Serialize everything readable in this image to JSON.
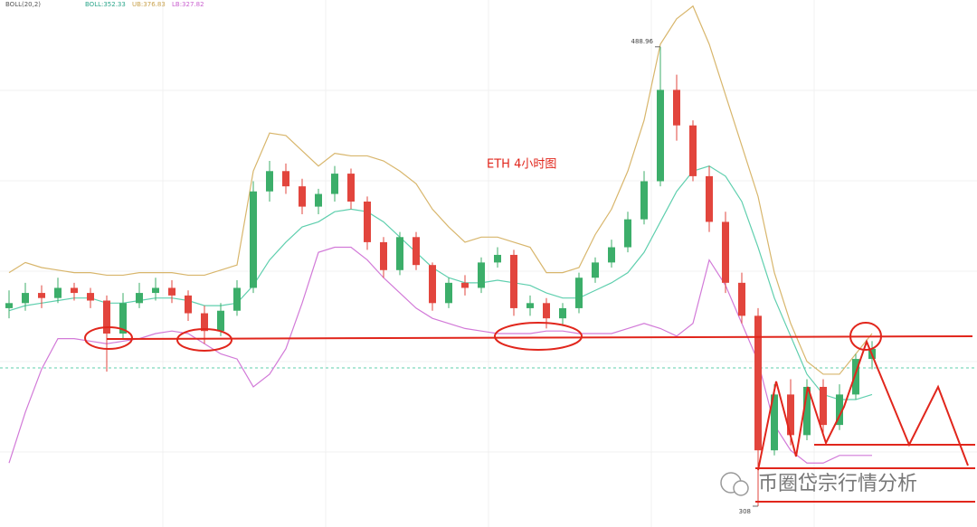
{
  "chart_data": {
    "type": "candlestick",
    "indicator": "BOLL(20,2)",
    "boll_label": "BOLL:352.33",
    "ub_label": "UB:376.83",
    "lb_label": "LB:327.82",
    "title": "ETH  4小时图",
    "watermark": "币圈岱宗行情分析",
    "annotations": [
      {
        "value": 488.96,
        "label": "488.96"
      },
      {
        "value": 308,
        "label": "308"
      }
    ],
    "ylim": [
      299.8,
      507.4
    ],
    "up_color": "#3cae6a",
    "down_color": "#e2453d",
    "open": [
      386,
      388,
      392,
      390,
      394,
      392,
      389,
      376,
      388,
      392,
      394,
      391,
      384,
      377,
      385,
      394,
      432,
      440,
      434,
      426,
      431,
      439,
      428,
      412,
      401,
      414,
      403,
      388,
      396,
      394,
      404,
      407,
      386,
      388,
      382,
      386,
      398,
      404,
      410,
      421,
      436,
      472,
      458,
      438,
      420,
      396,
      383,
      330,
      352,
      336,
      355,
      340,
      352,
      366
    ],
    "close": [
      388,
      392,
      390,
      394,
      392,
      389,
      376,
      388,
      392,
      394,
      391,
      384,
      377,
      385,
      394,
      432,
      440,
      434,
      426,
      431,
      439,
      428,
      412,
      401,
      414,
      403,
      388,
      396,
      394,
      404,
      407,
      386,
      388,
      382,
      386,
      398,
      404,
      410,
      421,
      436,
      472,
      458,
      438,
      420,
      396,
      383,
      330,
      352,
      336,
      355,
      340,
      352,
      366,
      370
    ],
    "high": [
      393,
      396,
      395,
      398,
      396,
      394,
      391,
      392,
      396,
      398,
      397,
      393,
      387,
      388,
      397,
      436,
      444,
      443,
      437,
      433,
      442,
      441,
      430,
      414,
      416,
      416,
      404,
      398,
      399,
      406,
      410,
      409,
      391,
      390,
      388,
      400,
      406,
      413,
      424,
      440,
      488.96,
      478,
      460,
      442,
      424,
      400,
      386,
      356,
      358,
      358,
      358,
      356,
      368,
      373
    ],
    "low": [
      382,
      385,
      386,
      388,
      389,
      386,
      361,
      374,
      386,
      389,
      388,
      381,
      372,
      375,
      383,
      392,
      428,
      431,
      423,
      423,
      428,
      425,
      409,
      398,
      399,
      401,
      385,
      386,
      391,
      392,
      402,
      383,
      383,
      378,
      379,
      384,
      396,
      402,
      408,
      419,
      434,
      452,
      436,
      416,
      392,
      380,
      308,
      328,
      332,
      334,
      336,
      338,
      350,
      362
    ],
    "upper": [
      400,
      404,
      402,
      401,
      400,
      400,
      399,
      399,
      400,
      400,
      400,
      399,
      399,
      401,
      403,
      440,
      455,
      454,
      448,
      442,
      447,
      446,
      446,
      444,
      440,
      435,
      425,
      418,
      412,
      414,
      414,
      412,
      410,
      400,
      400,
      402,
      415,
      425,
      440,
      460,
      490,
      500,
      505,
      490,
      470,
      450,
      430,
      400,
      380,
      365,
      360,
      360,
      368,
      376
    ],
    "middle": [
      385,
      387,
      388,
      389,
      390,
      390,
      388,
      388,
      389,
      390,
      390,
      389,
      387,
      387,
      388,
      395,
      405,
      412,
      418,
      420,
      424,
      425,
      424,
      420,
      414,
      408,
      402,
      398,
      396,
      396,
      397,
      396,
      395,
      392,
      390,
      390,
      393,
      396,
      400,
      408,
      420,
      432,
      440,
      442,
      438,
      428,
      410,
      390,
      375,
      360,
      352,
      350,
      350,
      352
    ],
    "lower": [
      325,
      345,
      362,
      374,
      374,
      373,
      372,
      373,
      374,
      376,
      377,
      376,
      372,
      368,
      366,
      355,
      360,
      370,
      388,
      408,
      410,
      410,
      405,
      398,
      392,
      386,
      382,
      380,
      378,
      377,
      376,
      376,
      376,
      377,
      377,
      376,
      376,
      376,
      378,
      380,
      378,
      375,
      380,
      405,
      395,
      380,
      365,
      340,
      330,
      325,
      325,
      328,
      328,
      328
    ],
    "band_colors": {
      "upper": "#d8b66c",
      "middle": "#5fcfae",
      "lower": "#d27ad8"
    }
  }
}
